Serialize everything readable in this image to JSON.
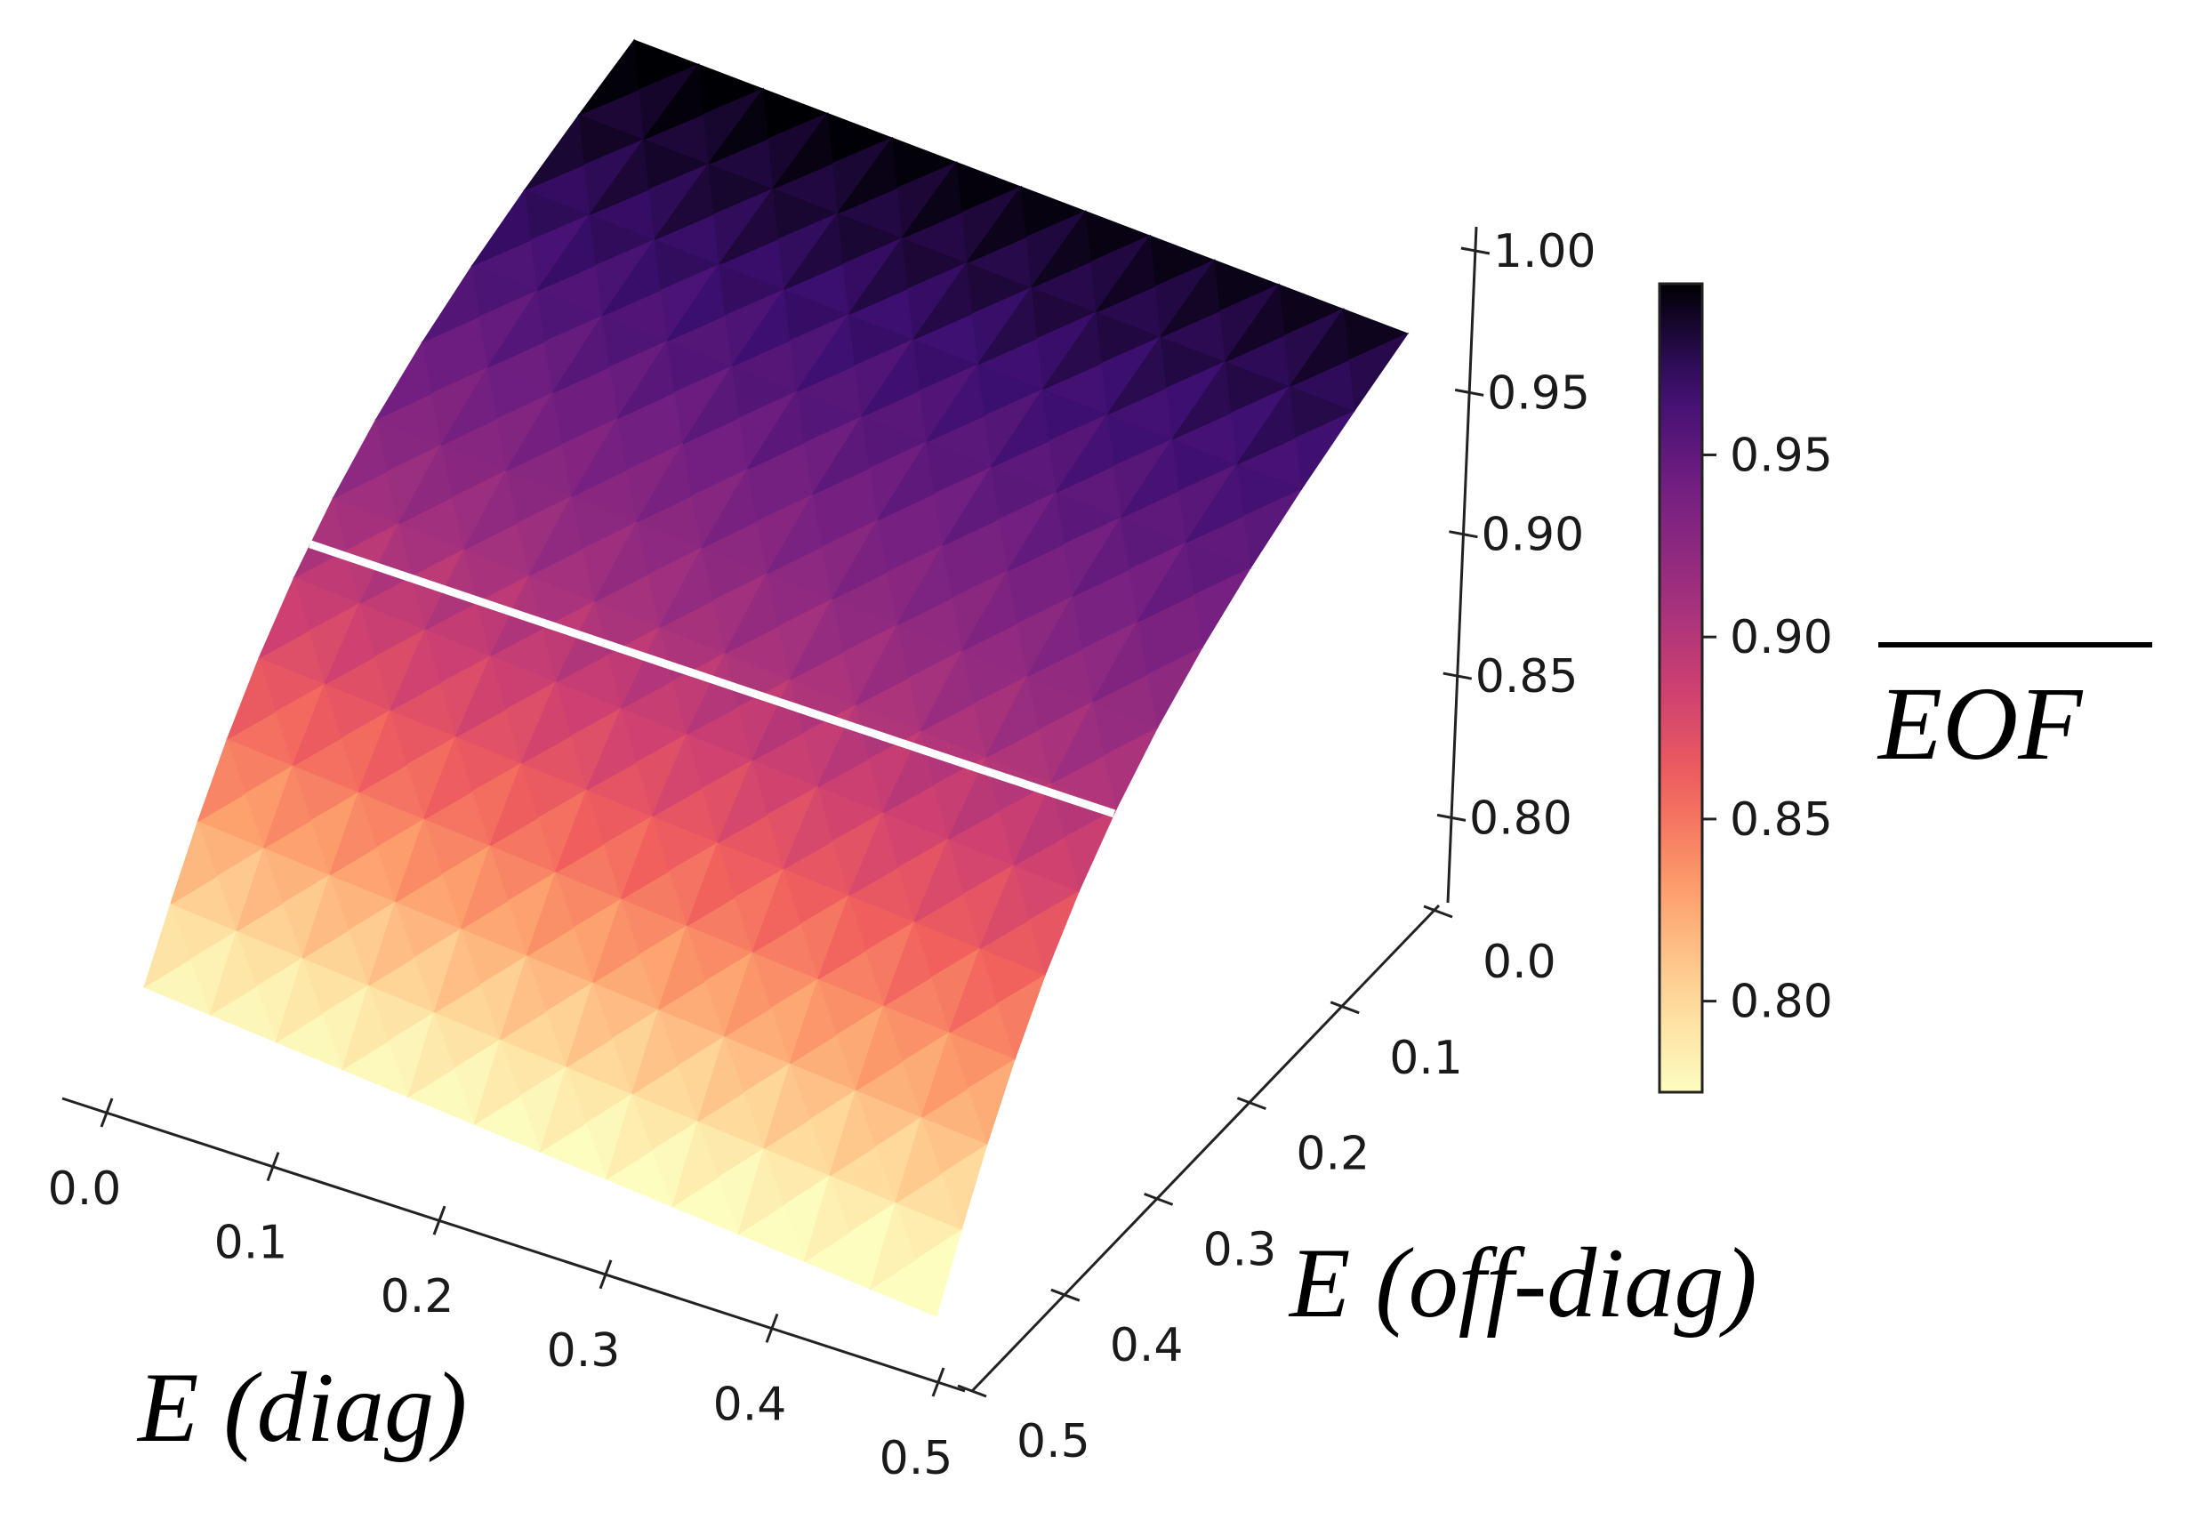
{
  "chart_data": {
    "type": "surface3d",
    "title": "",
    "x_axis": {
      "label": "E (diag)",
      "range": [
        0.0,
        0.5
      ],
      "ticks": [
        "0.0",
        "0.1",
        "0.2",
        "0.3",
        "0.4",
        "0.5"
      ]
    },
    "y_axis": {
      "label": "E (off-diag)",
      "range": [
        0.0,
        0.5
      ],
      "ticks": [
        "0.0",
        "0.1",
        "0.2",
        "0.3",
        "0.4",
        "0.5"
      ]
    },
    "z_axis": {
      "label": "",
      "range": [
        0.77,
        1.0
      ],
      "ticks": [
        "0.80",
        "0.85",
        "0.90",
        "0.95",
        "1.00"
      ]
    },
    "colorbar": {
      "label": "EOF",
      "overline": true,
      "colormap": "magma_r",
      "range": [
        0.775,
        0.997
      ],
      "ticks": [
        "0.80",
        "0.85",
        "0.90",
        "0.95"
      ]
    },
    "contour_line": {
      "level": 0.9,
      "color": "#ffffff"
    },
    "surface_summary": "EOF is approximately 0.775 at E(off-diag)=0.5 and rises to about 0.997 at E(off-diag)=0.0, nearly independent of E(diag), with faceted triangular shading.",
    "grid": false
  }
}
